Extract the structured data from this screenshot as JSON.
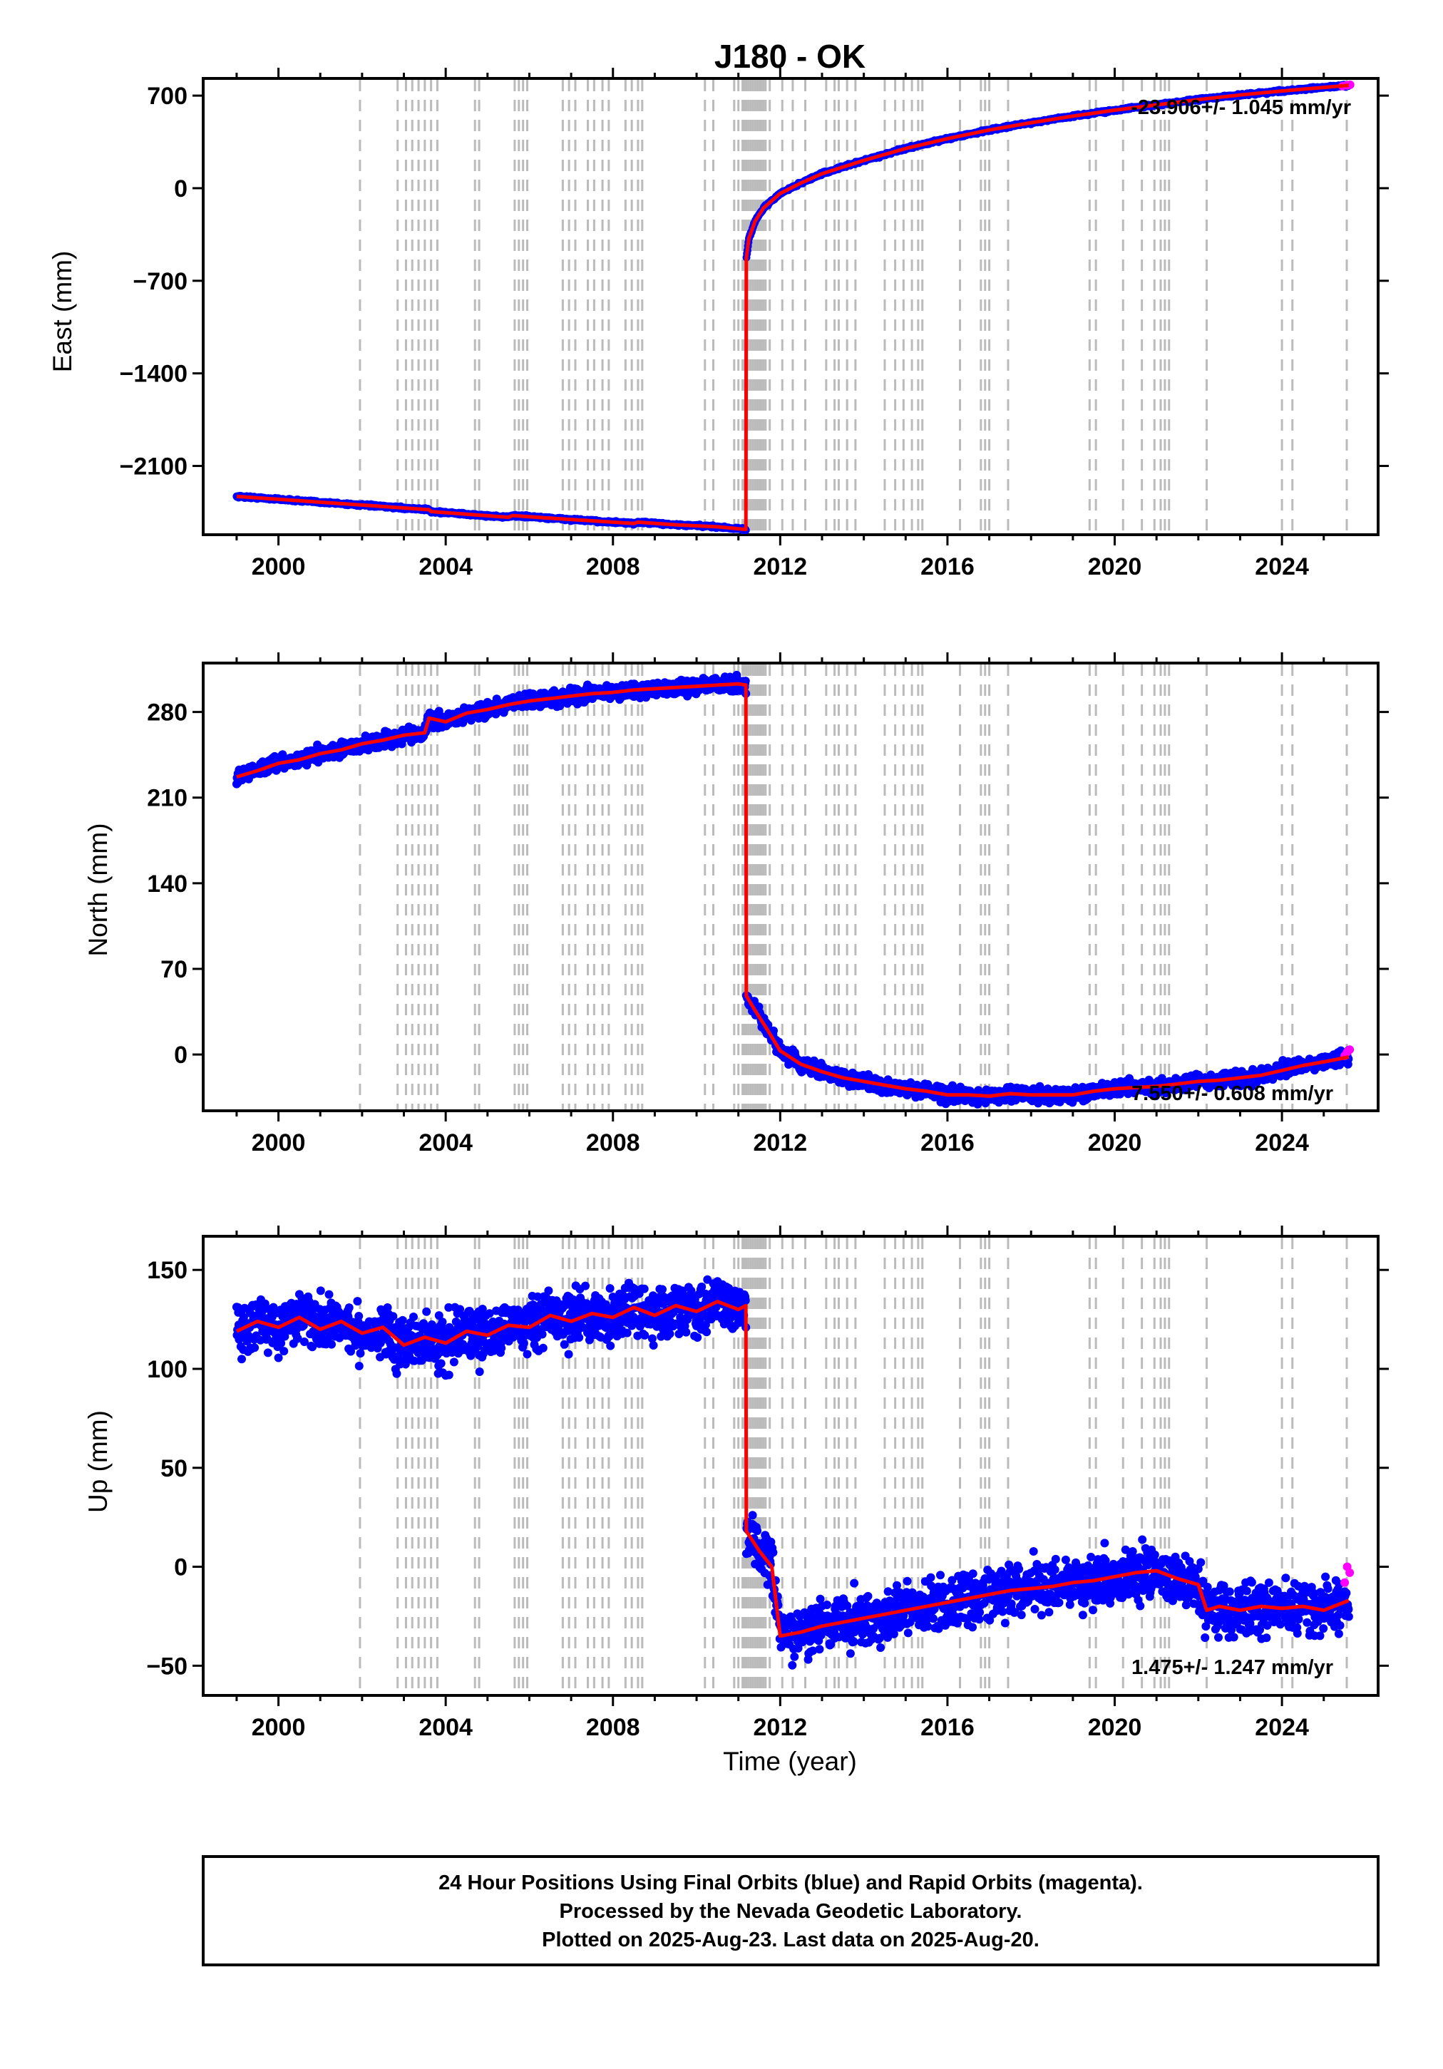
{
  "chart_data": {
    "type": "scatter",
    "title": "J180 - OK",
    "xlabel": "Time (year)",
    "xlim": [
      1998.2,
      2026.3
    ],
    "x_ticks": [
      2000,
      2004,
      2008,
      2012,
      2016,
      2020,
      2024
    ],
    "x_tick_labels": [
      "2000",
      "2004",
      "2008",
      "2012",
      "2016",
      "2020",
      "2024"
    ],
    "event_lines": [
      2001.95,
      2002.85,
      2003.05,
      2003.2,
      2003.35,
      2003.5,
      2003.65,
      2003.8,
      2004.7,
      2004.8,
      2005.65,
      2005.75,
      2005.85,
      2005.95,
      2006.8,
      2006.95,
      2007.1,
      2007.4,
      2007.55,
      2007.75,
      2007.9,
      2008.3,
      2008.45,
      2008.6,
      2008.7,
      2010.2,
      2010.4,
      2010.9,
      2011.0,
      2011.1,
      2011.15,
      2011.2,
      2011.25,
      2011.3,
      2011.35,
      2011.4,
      2011.45,
      2011.5,
      2011.55,
      2011.6,
      2011.65,
      2011.75,
      2012.05,
      2012.3,
      2012.6,
      2013.1,
      2013.3,
      2013.4,
      2013.6,
      2013.8,
      2014.5,
      2014.75,
      2014.95,
      2015.15,
      2015.3,
      2015.4,
      2016.3,
      2016.8,
      2016.9,
      2017.0,
      2017.45,
      2019.4,
      2019.55,
      2020.2,
      2020.65,
      2020.95,
      2021.1,
      2021.2,
      2021.3,
      2022.2,
      2024.0,
      2024.25,
      2025.55
    ],
    "panels": [
      {
        "ylabel": "East (mm)",
        "ylim": [
          -2620,
          830
        ],
        "y_ticks": [
          700,
          0,
          -700,
          -1400,
          -2100
        ],
        "y_tick_labels": [
          "700",
          "0",
          "−700",
          "−1400",
          "−2100"
        ],
        "rate_label": "-23.906+/- 1.045 mm/yr",
        "model_x": [
          1999.0,
          2000.0,
          2001.0,
          2002.0,
          2003.0,
          2003.6,
          2003.65,
          2004.5,
          2005.5,
          2005.6,
          2006.5,
          2007.5,
          2008.5,
          2008.6,
          2009.5,
          2010.5,
          2011.18,
          2011.19,
          2011.25,
          2011.4,
          2011.6,
          2012.0,
          2012.5,
          2013.0,
          2014.0,
          2015.0,
          2016.0,
          2017.0,
          2018.0,
          2019.0,
          2020.0,
          2021.0,
          2022.0,
          2023.0,
          2024.0,
          2025.0,
          2025.6
        ],
        "model_y": [
          -2330,
          -2352,
          -2374,
          -2396,
          -2418,
          -2431,
          -2445,
          -2465,
          -2488,
          -2475,
          -2495,
          -2515,
          -2535,
          -2525,
          -2545,
          -2560,
          -2580,
          -530,
          -380,
          -250,
          -150,
          -40,
          40,
          110,
          210,
          300,
          375,
          440,
          495,
          545,
          590,
          630,
          670,
          705,
          735,
          762,
          778
        ],
        "rapid_x": [
          2025.45,
          2025.55,
          2025.63
        ],
        "rapid_y": [
          772,
          778,
          782
        ]
      },
      {
        "ylabel": "North (mm)",
        "ylim": [
          -46,
          320
        ],
        "y_ticks": [
          280,
          210,
          140,
          70,
          0
        ],
        "y_tick_labels": [
          "280",
          "210",
          "140",
          "70",
          "0"
        ],
        "rate_label": "7.550+/- 0.608 mm/yr",
        "model_x": [
          1999.0,
          1999.5,
          2000.0,
          2000.5,
          2001.0,
          2001.5,
          2002.0,
          2002.5,
          2003.0,
          2003.5,
          2003.6,
          2004.0,
          2004.5,
          2005.0,
          2005.5,
          2006.0,
          2006.5,
          2007.0,
          2007.5,
          2008.0,
          2008.5,
          2009.0,
          2009.5,
          2010.0,
          2010.5,
          2011.0,
          2011.18,
          2011.19,
          2011.4,
          2011.7,
          2012.0,
          2012.5,
          2013.0,
          2013.5,
          2014.0,
          2014.5,
          2015.0,
          2015.5,
          2016.0,
          2016.5,
          2017.0,
          2017.5,
          2018.0,
          2018.5,
          2019.0,
          2019.5,
          2020.0,
          2020.5,
          2021.0,
          2021.5,
          2022.0,
          2022.5,
          2023.0,
          2023.5,
          2024.0,
          2024.5,
          2025.0,
          2025.6
        ],
        "model_y": [
          227,
          232,
          238,
          241,
          246,
          249,
          254,
          257,
          261,
          263,
          275,
          272,
          279,
          282,
          286,
          289,
          291,
          293,
          295,
          296,
          298,
          299,
          300,
          301,
          302,
          303,
          302,
          48,
          36,
          20,
          3,
          -8,
          -14,
          -19,
          -22,
          -25,
          -28,
          -30,
          -33,
          -33,
          -34,
          -32,
          -33,
          -33,
          -33,
          -30,
          -28,
          -27,
          -26,
          -24,
          -22,
          -21,
          -19,
          -17,
          -13,
          -9,
          -6,
          -2
        ],
        "rapid_x": [
          2025.5,
          2025.56,
          2025.62
        ],
        "rapid_y": [
          -1,
          2,
          4
        ]
      },
      {
        "ylabel": "Up (mm)",
        "ylim": [
          -65,
          167
        ],
        "y_ticks": [
          150,
          100,
          50,
          0,
          -50
        ],
        "y_tick_labels": [
          "150",
          "100",
          "50",
          "0",
          "−50"
        ],
        "rate_label": "1.475+/- 1.247 mm/yr",
        "model_x": [
          1999.0,
          1999.5,
          2000.0,
          2000.5,
          2001.0,
          2001.5,
          2002.0,
          2002.5,
          2003.0,
          2003.5,
          2004.0,
          2004.5,
          2005.0,
          2005.5,
          2006.0,
          2006.5,
          2007.0,
          2007.5,
          2008.0,
          2008.5,
          2009.0,
          2009.5,
          2010.0,
          2010.5,
          2011.0,
          2011.18,
          2011.19,
          2011.5,
          2011.8,
          2012.0,
          2012.5,
          2013.0,
          2013.5,
          2014.0,
          2014.5,
          2015.0,
          2015.5,
          2016.0,
          2016.5,
          2017.0,
          2017.5,
          2018.0,
          2018.5,
          2019.0,
          2019.5,
          2020.0,
          2020.5,
          2021.0,
          2021.5,
          2022.0,
          2022.2,
          2022.5,
          2023.0,
          2023.5,
          2024.0,
          2024.5,
          2025.0,
          2025.6
        ],
        "model_y": [
          119,
          124,
          121,
          126,
          120,
          124,
          118,
          121,
          112,
          116,
          113,
          119,
          117,
          122,
          121,
          127,
          124,
          128,
          126,
          131,
          127,
          132,
          129,
          134,
          130,
          132,
          18,
          8,
          0,
          -35,
          -33,
          -30,
          -28,
          -26,
          -24,
          -22,
          -20,
          -18,
          -16,
          -14,
          -12,
          -11,
          -10,
          -8,
          -7,
          -5,
          -3,
          -2,
          -6,
          -9,
          -22,
          -20,
          -22,
          -20,
          -21,
          -20,
          -22,
          -17
        ],
        "rapid_x": [
          2025.5,
          2025.56,
          2025.62
        ],
        "rapid_y": [
          -8,
          0,
          -3
        ]
      }
    ]
  },
  "footer": {
    "line1": "24 Hour Positions Using Final Orbits (blue) and Rapid Orbits (magenta).",
    "line2": "Processed by the Nevada Geodetic Laboratory.",
    "line3": "Plotted on 2025-Aug-23. Last data on 2025-Aug-20."
  },
  "colors": {
    "final_orbits": "#0000ff",
    "rapid_orbits": "#ff00ff",
    "model": "#ff0000",
    "event_lines": "#bbbbbb",
    "frame": "#000000"
  }
}
